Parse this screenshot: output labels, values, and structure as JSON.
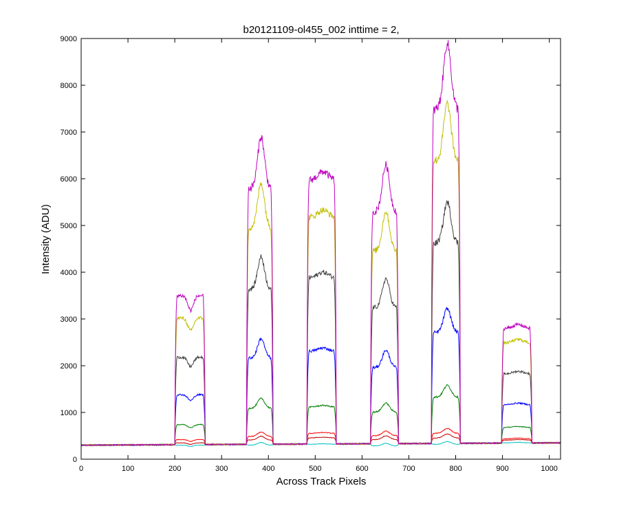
{
  "chart_data": {
    "type": "line",
    "title": "b20121109-ol455_002 inttime = 2,",
    "xlabel": "Across Track Pixels",
    "ylabel": "Intensity (ADU)",
    "xlim": [
      0,
      1024
    ],
    "ylim": [
      0,
      9000
    ],
    "xticks": [
      0,
      100,
      200,
      300,
      400,
      500,
      600,
      700,
      800,
      900,
      1000
    ],
    "yticks": [
      0,
      1000,
      2000,
      3000,
      4000,
      5000,
      6000,
      7000,
      8000,
      9000
    ],
    "grid": false,
    "legend": "none",
    "baseline": {
      "at_x0": 300,
      "at_x1024": 350
    },
    "series": [
      {
        "color": "#00BFBF",
        "plateaus": [
          300,
          360,
          330,
          340,
          380,
          360
        ]
      },
      {
        "color": "#BF0000",
        "plateaus": [
          350,
          490,
          470,
          500,
          540,
          420
        ]
      },
      {
        "color": "#FF0000",
        "plateaus": [
          420,
          580,
          570,
          600,
          660,
          450
        ]
      },
      {
        "color": "#007F00",
        "plateaus": [
          740,
          1300,
          1150,
          1200,
          1580,
          700
        ]
      },
      {
        "color": "#0000FF",
        "plateaus": [
          1380,
          2580,
          2380,
          2330,
          3220,
          1200
        ]
      },
      {
        "color": "#404040",
        "plateaus": [
          2180,
          4330,
          4000,
          3860,
          5500,
          1880
        ]
      },
      {
        "color": "#BFBF00",
        "plateaus": [
          3020,
          5900,
          5330,
          5300,
          7600,
          2560
        ]
      },
      {
        "color": "#BF00BF",
        "plateaus": [
          3500,
          6900,
          6150,
          6300,
          8900,
          2880
        ]
      }
    ],
    "peaks": [
      {
        "x_range": [
          200,
          265
        ],
        "profile": "double"
      },
      {
        "x_range": [
          353,
          410
        ],
        "profile": "peak"
      },
      {
        "x_range": [
          482,
          545
        ],
        "profile": "flat"
      },
      {
        "x_range": [
          618,
          678
        ],
        "profile": "peak"
      },
      {
        "x_range": [
          748,
          810
        ],
        "profile": "peak"
      },
      {
        "x_range": [
          898,
          963
        ],
        "profile": "flat"
      }
    ]
  }
}
